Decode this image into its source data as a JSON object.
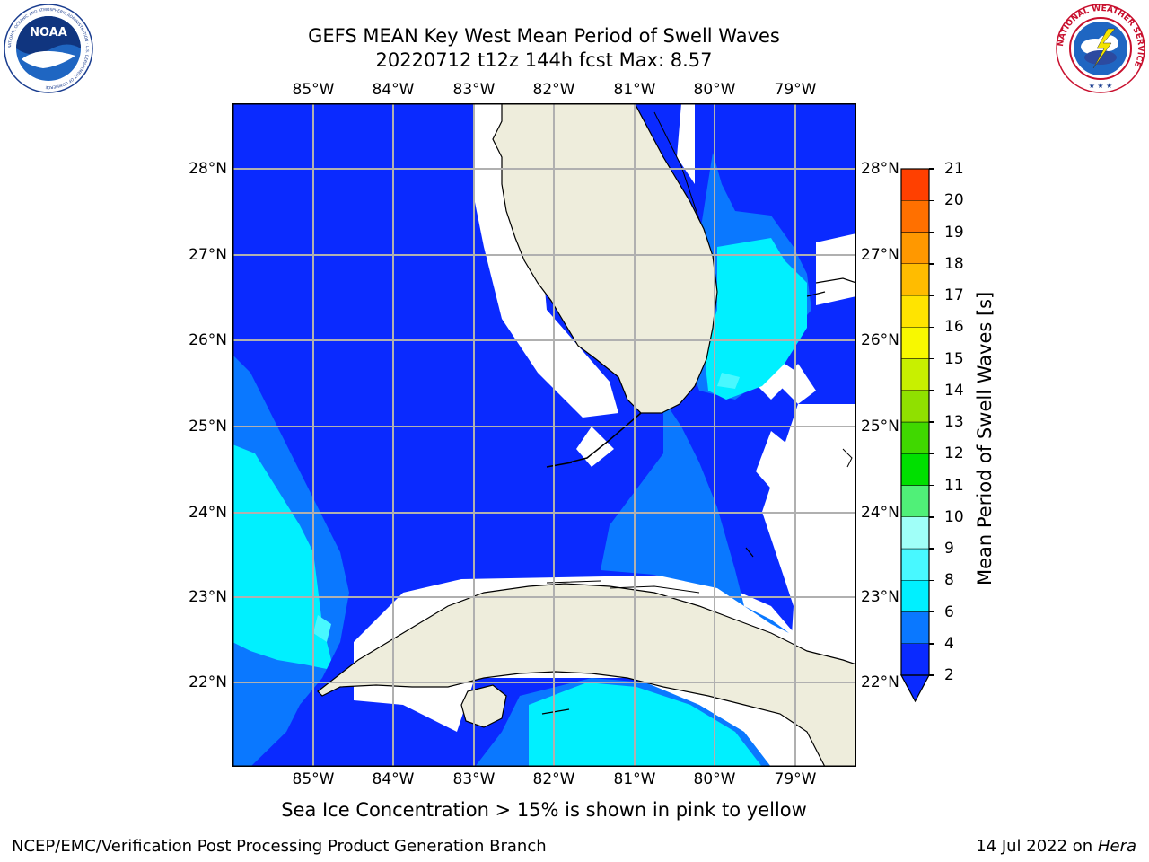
{
  "header": {
    "title_line1": "GEFS MEAN Key West Mean Period of Swell Waves",
    "title_line2": "20220712 t12z 144h fcst   Max: 8.57"
  },
  "logos": {
    "left": {
      "icon": "noaa-logo",
      "text": "NOAA",
      "ring_text": "NATIONAL OCEANIC AND ATMOSPHERIC ADMINISTRATION · U.S. DEPARTMENT OF COMMERCE"
    },
    "right": {
      "icon": "nws-logo",
      "ring_text": "NATIONAL WEATHER SERVICE"
    }
  },
  "map": {
    "lon_ticks": [
      "85°W",
      "84°W",
      "83°W",
      "82°W",
      "81°W",
      "80°W",
      "79°W"
    ],
    "lat_ticks": [
      "28°N",
      "27°N",
      "26°N",
      "25°N",
      "24°N",
      "23°N",
      "22°N"
    ],
    "lon_range": [
      -86.0,
      -78.25
    ],
    "lat_range": [
      21.05,
      28.8
    ],
    "colors": {
      "land": "#eeeddc",
      "coast": "#000000",
      "grid": "#b0b0b0",
      "missing": "#ffffff"
    }
  },
  "colorbar": {
    "label": "Mean Period of Swell Waves [s]",
    "levels": [
      "2",
      "4",
      "6",
      "8",
      "9",
      "10",
      "11",
      "12",
      "13",
      "14",
      "15",
      "16",
      "17",
      "18",
      "19",
      "20",
      "21"
    ],
    "colors": [
      "#0a2aff",
      "#0a78ff",
      "#00f0ff",
      "#48f8ff",
      "#a0fff8",
      "#50f078",
      "#00e000",
      "#40d800",
      "#90e000",
      "#c8f000",
      "#f8f800",
      "#ffe400",
      "#ffbc00",
      "#ff9800",
      "#ff7000",
      "#ff4000",
      "#ff1000"
    ],
    "extend": "min"
  },
  "note": "Sea Ice Concentration > 15% is shown in pink to yellow",
  "footer": {
    "left": "NCEP/EMC/Verification Post Processing Product Generation Branch",
    "date": "14 Jul 2022 on ",
    "machine": "Hera"
  }
}
